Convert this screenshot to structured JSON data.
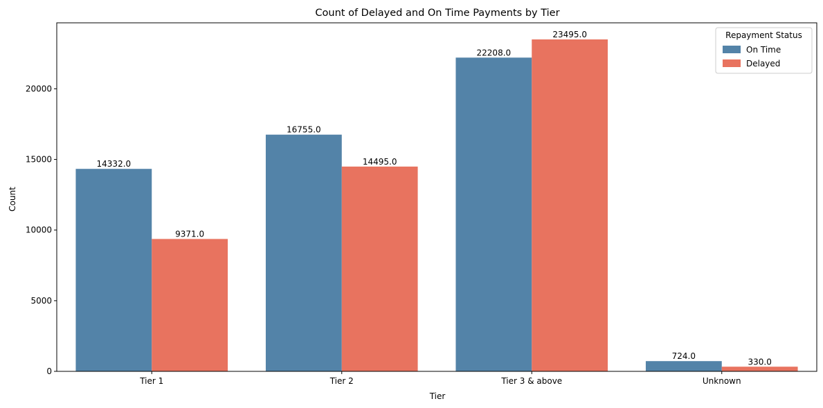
{
  "chart_data": {
    "type": "bar",
    "title": "Count of Delayed and On Time Payments by Tier",
    "xlabel": "Tier",
    "ylabel": "Count",
    "categories": [
      "Tier 1",
      "Tier 2",
      "Tier 3 & above",
      "Unknown"
    ],
    "series": [
      {
        "name": "On Time",
        "color": "#5383a8",
        "values": [
          14332.0,
          16755.0,
          22208.0,
          724.0
        ],
        "labels": [
          "14332.0",
          "16755.0",
          "22208.0",
          "724.0"
        ]
      },
      {
        "name": "Delayed",
        "color": "#e8735f",
        "values": [
          9371.0,
          14495.0,
          23495.0,
          330.0
        ],
        "labels": [
          "9371.0",
          "14495.0",
          "23495.0",
          "330.0"
        ]
      }
    ],
    "yticks": [
      0,
      5000,
      10000,
      15000,
      20000
    ],
    "ytick_labels": [
      "0",
      "5000",
      "10000",
      "15000",
      "20000"
    ],
    "ylim": [
      0,
      24670
    ],
    "legend": {
      "title": "Repayment Status",
      "position": "top-right"
    },
    "grid": false
  }
}
